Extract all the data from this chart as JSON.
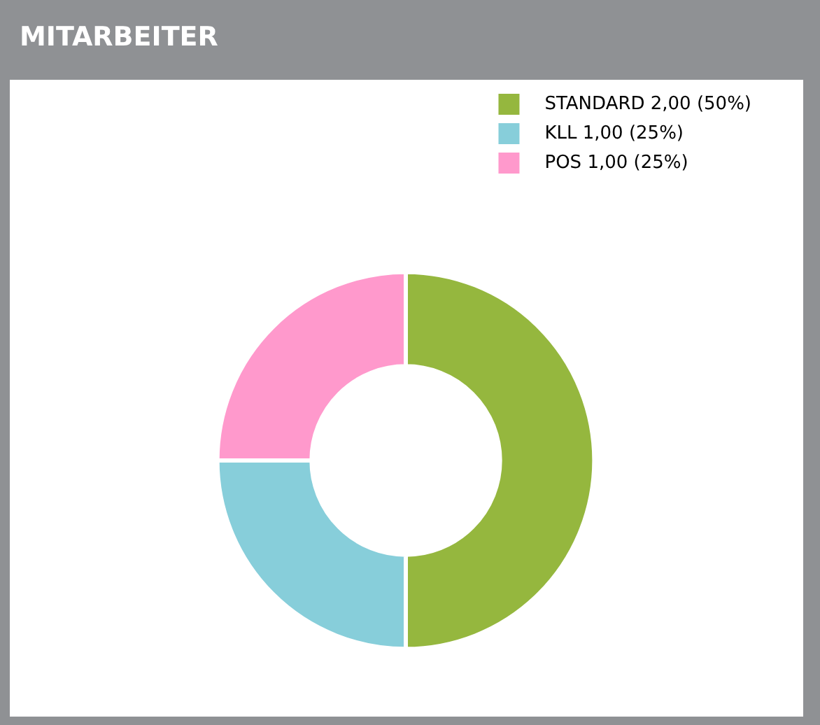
{
  "chart_data": {
    "type": "donut",
    "title": "MITARBEITER",
    "categories": [
      "STANDARD",
      "KLL",
      "POS"
    ],
    "values": [
      2,
      1,
      1
    ],
    "value_labels": [
      "2,00 (50%)",
      "1,00 (25%)",
      "1,00 (25%)"
    ],
    "colors": [
      "#95b73e",
      "#87ceda",
      "#ff99cc"
    ],
    "legend": "top right"
  }
}
